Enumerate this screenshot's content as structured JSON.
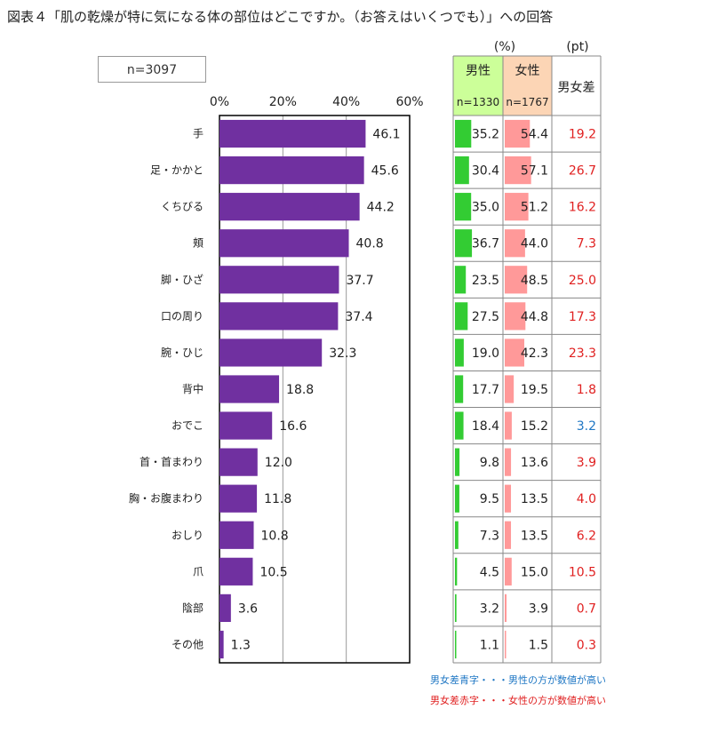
{
  "title": "図表４「肌の乾燥が特に気になる体の部位はどこですか。（お答えはいくつでも）」への回答",
  "n_label": "n=3097",
  "table": {
    "unit_pct": "(%)",
    "unit_pt": "(pt)",
    "male_label": "男性",
    "male_n": "n=1330",
    "female_label": "女性",
    "female_n": "n=1767",
    "diff_label": "男女差"
  },
  "colors": {
    "bar": "#7030a0",
    "male_header_bg": "#ccff99",
    "female_header_bg": "#fcd5b5",
    "male_bar": "#33cc33",
    "female_bar": "#ff9999",
    "diff_red": "#e02020",
    "diff_blue": "#1f77c4",
    "grid": "#999999"
  },
  "notes": {
    "blue": "男女差青字・・・男性の方が数値が高い",
    "red": "男女差赤字・・・女性の方が数値が高い"
  },
  "chart_data": {
    "type": "bar",
    "orientation": "horizontal",
    "categories": [
      "手",
      "足・かかと",
      "くちびる",
      "頬",
      "脚・ひざ",
      "口の周り",
      "腕・ひじ",
      "背中",
      "おでこ",
      "首・首まわり",
      "胸・お腹まわり",
      "おしり",
      "爪",
      "陰部",
      "その他"
    ],
    "values": [
      46.1,
      45.6,
      44.2,
      40.8,
      37.7,
      37.4,
      32.3,
      18.8,
      16.6,
      12.0,
      11.8,
      10.8,
      10.5,
      3.6,
      1.3
    ],
    "value_labels": [
      "46.1",
      "45.6",
      "44.2",
      "40.8",
      "37.7",
      "37.4",
      "32.3",
      "18.8",
      "16.6",
      "12.0",
      "11.8",
      "10.8",
      "10.5",
      "3.6",
      "1.3"
    ],
    "xlim": [
      0,
      60
    ],
    "xticks": [
      "0%",
      "20%",
      "40%",
      "60%"
    ],
    "grid": true,
    "table_rows": {
      "male": [
        "35.2",
        "30.4",
        "35.0",
        "36.7",
        "23.5",
        "27.5",
        "19.0",
        "17.7",
        "18.4",
        "9.8",
        "9.5",
        "7.3",
        "4.5",
        "3.2",
        "1.1"
      ],
      "female": [
        "54.4",
        "57.1",
        "51.2",
        "44.0",
        "48.5",
        "44.8",
        "42.3",
        "19.5",
        "15.2",
        "13.6",
        "13.5",
        "13.5",
        "15.0",
        "3.9",
        "1.5"
      ],
      "diff": [
        "19.2",
        "26.7",
        "16.2",
        "7.3",
        "25.0",
        "17.3",
        "23.3",
        "1.8",
        "3.2",
        "3.9",
        "4.0",
        "6.2",
        "10.5",
        "0.7",
        "0.3"
      ],
      "diff_color": [
        "red",
        "red",
        "red",
        "red",
        "red",
        "red",
        "red",
        "red",
        "blue",
        "red",
        "red",
        "red",
        "red",
        "red",
        "red"
      ]
    }
  }
}
